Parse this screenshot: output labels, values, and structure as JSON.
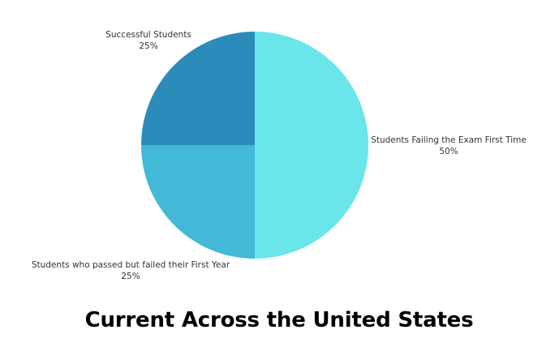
{
  "chart_data": {
    "type": "pie",
    "title": "Current Across the United States",
    "start_angle_deg": 0,
    "direction": "clockwise",
    "slices": [
      {
        "label": "Students Failing the Exam First Time",
        "value": 50,
        "value_label": "50%",
        "color": "#6ae6ea"
      },
      {
        "label": "Students who passed but failed their First Year",
        "value": 25,
        "value_label": "25%",
        "color": "#43b8d7"
      },
      {
        "label": "Successful Students",
        "value": 25,
        "value_label": "25%",
        "color": "#2b8cbb"
      }
    ]
  }
}
